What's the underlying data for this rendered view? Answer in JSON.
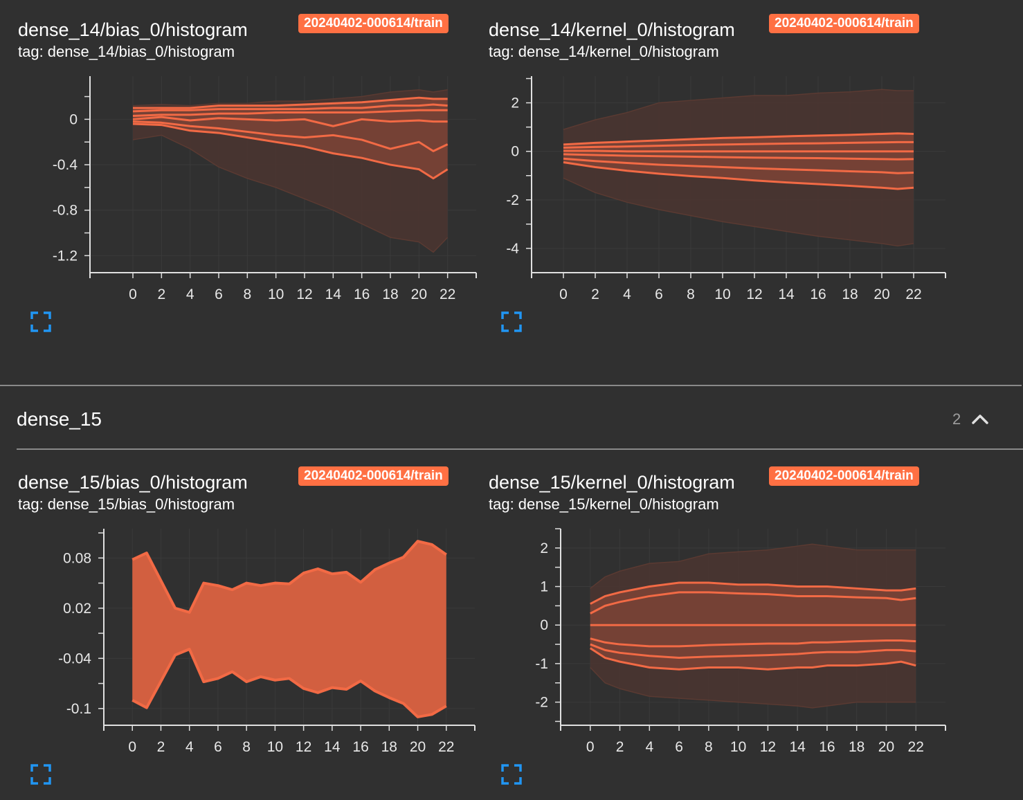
{
  "run_label": "20240402-000614/train",
  "colors": {
    "accent": "#ff7043",
    "band_dark": "#4a3531",
    "band_mid": "#7a4336",
    "band_inner": "#b0533c",
    "line": "#f26a45",
    "expand_icon": "#2196f3"
  },
  "section": {
    "title": "dense_15",
    "count": "2",
    "icon": "chevron-up-icon"
  },
  "cards": [
    {
      "title": "dense_14/bias_0/histogram",
      "tag": "tag: dense_14/bias_0/histogram",
      "expand_icon": "fullscreen-icon",
      "chart_data": {
        "type": "area",
        "xlim": [
          -3,
          24
        ],
        "ylim": [
          -1.35,
          0.38
        ],
        "xticks": [
          0,
          2,
          4,
          6,
          8,
          10,
          12,
          14,
          16,
          18,
          20,
          22
        ],
        "yticks": [
          0,
          -0.4,
          -0.8,
          -1.2
        ],
        "ytick_labels": [
          "0",
          "-0.4",
          "-0.8",
          "-1.2"
        ],
        "x": [
          0,
          2,
          4,
          6,
          8,
          10,
          12,
          14,
          16,
          18,
          20,
          21,
          22
        ],
        "upper": [
          0.12,
          0.13,
          0.12,
          0.14,
          0.14,
          0.16,
          0.16,
          0.18,
          0.2,
          0.24,
          0.26,
          0.24,
          0.26
        ],
        "lower": [
          -0.18,
          -0.14,
          -0.26,
          -0.42,
          -0.52,
          -0.6,
          -0.7,
          -0.8,
          -0.92,
          -1.04,
          -1.08,
          -1.17,
          -1.04
        ],
        "mid_upper": [
          0.1,
          0.1,
          0.1,
          0.12,
          0.12,
          0.12,
          0.13,
          0.14,
          0.15,
          0.17,
          0.19,
          0.18,
          0.18
        ],
        "mid_lower": [
          -0.04,
          -0.05,
          -0.1,
          -0.12,
          -0.16,
          -0.2,
          -0.24,
          -0.3,
          -0.34,
          -0.4,
          -0.44,
          -0.52,
          -0.44
        ],
        "lines": [
          [
            0.1,
            0.1,
            0.1,
            0.12,
            0.12,
            0.12,
            0.13,
            0.14,
            0.15,
            0.17,
            0.19,
            0.18,
            0.18
          ],
          [
            0.07,
            0.08,
            0.08,
            0.09,
            0.09,
            0.09,
            0.09,
            0.1,
            0.1,
            0.12,
            0.12,
            0.13,
            0.12
          ],
          [
            0.03,
            0.04,
            0.04,
            0.05,
            0.05,
            0.06,
            0.06,
            0.06,
            0.06,
            0.07,
            0.08,
            0.08,
            0.08
          ],
          [
            0.0,
            0.02,
            -0.01,
            0.01,
            0.0,
            -0.01,
            0.0,
            -0.06,
            0.0,
            -0.02,
            -0.01,
            -0.02,
            -0.02
          ],
          [
            -0.02,
            -0.03,
            -0.06,
            -0.08,
            -0.11,
            -0.14,
            -0.16,
            -0.14,
            -0.18,
            -0.26,
            -0.2,
            -0.28,
            -0.22
          ],
          [
            -0.04,
            -0.05,
            -0.1,
            -0.12,
            -0.16,
            -0.2,
            -0.24,
            -0.3,
            -0.34,
            -0.4,
            -0.44,
            -0.52,
            -0.44
          ]
        ]
      }
    },
    {
      "title": "dense_14/kernel_0/histogram",
      "tag": "tag: dense_14/kernel_0/histogram",
      "expand_icon": "fullscreen-icon",
      "chart_data": {
        "type": "area",
        "xlim": [
          -2,
          24
        ],
        "ylim": [
          -5,
          3.1
        ],
        "xticks": [
          0,
          2,
          4,
          6,
          8,
          10,
          12,
          14,
          16,
          18,
          20,
          22
        ],
        "yticks": [
          2,
          0,
          -2,
          -4
        ],
        "ytick_labels": [
          "2",
          "0",
          "-2",
          "-4"
        ],
        "x": [
          0,
          2,
          4,
          6,
          8,
          10,
          12,
          14,
          16,
          18,
          20,
          21,
          22
        ],
        "upper": [
          0.9,
          1.3,
          1.6,
          2.0,
          2.1,
          2.2,
          2.3,
          2.3,
          2.4,
          2.45,
          2.55,
          2.5,
          2.5
        ],
        "lower": [
          -1.1,
          -1.7,
          -2.1,
          -2.4,
          -2.65,
          -2.9,
          -3.1,
          -3.3,
          -3.5,
          -3.65,
          -3.8,
          -3.9,
          -3.8
        ],
        "mid_upper": [
          0.28,
          0.35,
          0.4,
          0.45,
          0.5,
          0.55,
          0.58,
          0.62,
          0.65,
          0.68,
          0.72,
          0.74,
          0.72
        ],
        "mid_lower": [
          -0.45,
          -0.65,
          -0.8,
          -0.92,
          -1.02,
          -1.1,
          -1.2,
          -1.28,
          -1.35,
          -1.42,
          -1.5,
          -1.55,
          -1.5
        ],
        "lines": [
          [
            0.28,
            0.35,
            0.4,
            0.45,
            0.5,
            0.55,
            0.58,
            0.62,
            0.65,
            0.68,
            0.72,
            0.74,
            0.72
          ],
          [
            0.15,
            0.18,
            0.2,
            0.23,
            0.26,
            0.28,
            0.3,
            0.32,
            0.33,
            0.35,
            0.37,
            0.38,
            0.38
          ],
          [
            0.02,
            0.02,
            0.0,
            0.0,
            0.0,
            0.0,
            0.0,
            0.0,
            0.0,
            0.0,
            0.0,
            0.0,
            0.0
          ],
          [
            -0.12,
            -0.15,
            -0.18,
            -0.2,
            -0.22,
            -0.24,
            -0.26,
            -0.27,
            -0.28,
            -0.3,
            -0.32,
            -0.33,
            -0.32
          ],
          [
            -0.3,
            -0.4,
            -0.48,
            -0.55,
            -0.6,
            -0.65,
            -0.7,
            -0.74,
            -0.78,
            -0.82,
            -0.86,
            -0.9,
            -0.88
          ],
          [
            -0.45,
            -0.65,
            -0.8,
            -0.92,
            -1.02,
            -1.1,
            -1.2,
            -1.28,
            -1.35,
            -1.42,
            -1.5,
            -1.55,
            -1.5
          ]
        ]
      }
    },
    {
      "title": "dense_15/bias_0/histogram",
      "tag": "tag: dense_15/bias_0/histogram",
      "expand_icon": "fullscreen-icon",
      "chart_data": {
        "type": "area",
        "xlim": [
          -2,
          24
        ],
        "ylim": [
          -0.12,
          0.115
        ],
        "xticks": [
          0,
          2,
          4,
          6,
          8,
          10,
          12,
          14,
          16,
          18,
          20,
          22
        ],
        "yticks": [
          0.08,
          0.02,
          -0.04,
          -0.1
        ],
        "ytick_labels": [
          "0.08",
          "0.02",
          "-0.04",
          "-0.1"
        ],
        "x": [
          0,
          1,
          3,
          4,
          5,
          6,
          7,
          8,
          9,
          10,
          11,
          12,
          13,
          14,
          15,
          16,
          17,
          18,
          19,
          20,
          21,
          22
        ],
        "upper": [
          0.078,
          0.086,
          0.02,
          0.015,
          0.05,
          0.047,
          0.042,
          0.05,
          0.047,
          0.05,
          0.049,
          0.062,
          0.067,
          0.061,
          0.063,
          0.051,
          0.066,
          0.074,
          0.081,
          0.1,
          0.096,
          0.084
        ],
        "lower": [
          -0.09,
          -0.099,
          -0.036,
          -0.029,
          -0.068,
          -0.064,
          -0.056,
          -0.068,
          -0.062,
          -0.066,
          -0.064,
          -0.076,
          -0.081,
          -0.075,
          -0.077,
          -0.067,
          -0.079,
          -0.087,
          -0.094,
          -0.11,
          -0.107,
          -0.097
        ]
      }
    },
    {
      "title": "dense_15/kernel_0/histogram",
      "tag": "tag: dense_15/kernel_0/histogram",
      "expand_icon": "fullscreen-icon",
      "chart_data": {
        "type": "area",
        "xlim": [
          -2,
          24
        ],
        "ylim": [
          -2.6,
          2.5
        ],
        "xticks": [
          0,
          2,
          4,
          6,
          8,
          10,
          12,
          14,
          16,
          18,
          20,
          22
        ],
        "yticks": [
          2,
          1,
          0,
          -1,
          -2
        ],
        "ytick_labels": [
          "2",
          "1",
          "0",
          "-1",
          "-2"
        ],
        "x": [
          0,
          1,
          2,
          4,
          6,
          8,
          10,
          12,
          14,
          15,
          16,
          18,
          20,
          21,
          22
        ],
        "upper": [
          0.95,
          1.25,
          1.4,
          1.6,
          1.65,
          1.85,
          1.9,
          1.95,
          2.05,
          2.1,
          2.05,
          1.95,
          1.95,
          1.95,
          1.95
        ],
        "lower": [
          -1.1,
          -1.5,
          -1.65,
          -1.85,
          -1.9,
          -1.95,
          -2.0,
          -2.05,
          -2.1,
          -2.15,
          -2.1,
          -2.0,
          -2.0,
          -2.0,
          -2.0
        ],
        "mid_upper": [
          0.55,
          0.75,
          0.85,
          1.0,
          1.1,
          1.1,
          1.05,
          1.05,
          1.0,
          1.0,
          1.0,
          0.95,
          0.9,
          0.9,
          0.95
        ],
        "mid_lower": [
          -0.6,
          -0.85,
          -0.95,
          -1.1,
          -1.15,
          -1.1,
          -1.1,
          -1.15,
          -1.1,
          -1.1,
          -1.05,
          -1.05,
          -1.0,
          -0.95,
          -1.05
        ],
        "lines": [
          [
            0.55,
            0.75,
            0.85,
            1.0,
            1.1,
            1.1,
            1.05,
            1.05,
            1.0,
            1.0,
            1.0,
            0.95,
            0.9,
            0.9,
            0.95
          ],
          [
            0.3,
            0.5,
            0.6,
            0.75,
            0.85,
            0.85,
            0.82,
            0.8,
            0.75,
            0.75,
            0.75,
            0.72,
            0.7,
            0.65,
            0.7
          ],
          [
            0.0,
            0.0,
            0.0,
            0.0,
            0.0,
            0.0,
            0.0,
            0.0,
            0.0,
            0.0,
            0.0,
            0.0,
            0.0,
            0.0,
            0.0
          ],
          [
            -0.35,
            -0.45,
            -0.5,
            -0.55,
            -0.55,
            -0.52,
            -0.5,
            -0.48,
            -0.48,
            -0.45,
            -0.45,
            -0.42,
            -0.4,
            -0.4,
            -0.42
          ],
          [
            -0.5,
            -0.65,
            -0.72,
            -0.8,
            -0.85,
            -0.82,
            -0.8,
            -0.78,
            -0.75,
            -0.72,
            -0.7,
            -0.7,
            -0.65,
            -0.65,
            -0.68
          ],
          [
            -0.6,
            -0.85,
            -0.95,
            -1.1,
            -1.15,
            -1.1,
            -1.1,
            -1.15,
            -1.1,
            -1.1,
            -1.05,
            -1.05,
            -1.0,
            -0.95,
            -1.05
          ]
        ]
      }
    }
  ]
}
